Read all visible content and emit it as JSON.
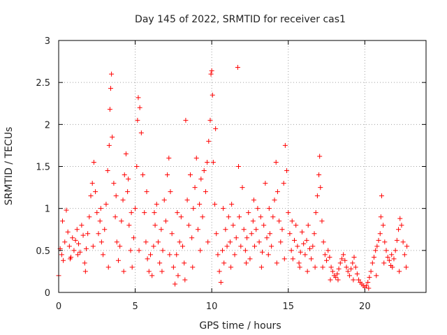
{
  "chart_data": {
    "type": "scatter",
    "title": "Day 145 of 2022, SRMTID for receiver cas1",
    "xlabel": "GPS time / hours",
    "ylabel": "SRMTID / TECUs",
    "xlim": [
      0,
      24
    ],
    "ylim": [
      0,
      3
    ],
    "xticks": [
      "0",
      "5",
      "10",
      "15",
      "20"
    ],
    "yticks": [
      "0",
      "0.5",
      "1",
      "1.5",
      "2",
      "2.5",
      "3"
    ],
    "grid": true,
    "marker": "+",
    "color": "#ff0000",
    "series": [
      {
        "name": "cas1",
        "points": [
          [
            0.1,
            0.52
          ],
          [
            0.2,
            0.45
          ],
          [
            0.3,
            0.38
          ],
          [
            0.4,
            0.6
          ],
          [
            0.5,
            0.98
          ],
          [
            0.6,
            0.72
          ],
          [
            0.7,
            0.55
          ],
          [
            0.8,
            0.42
          ],
          [
            0.9,
            0.65
          ],
          [
            1.0,
            0.5
          ],
          [
            1.1,
            0.62
          ],
          [
            1.2,
            0.75
          ],
          [
            1.3,
            0.58
          ],
          [
            1.4,
            0.48
          ],
          [
            1.5,
            0.8
          ],
          [
            1.6,
            0.68
          ],
          [
            1.7,
            0.35
          ],
          [
            1.8,
            0.52
          ],
          [
            1.9,
            0.7
          ],
          [
            2.0,
            0.9
          ],
          [
            2.1,
            1.15
          ],
          [
            2.2,
            1.3
          ],
          [
            2.3,
            1.55
          ],
          [
            2.4,
            1.2
          ],
          [
            2.5,
            0.95
          ],
          [
            2.6,
            0.7
          ],
          [
            2.7,
            0.85
          ],
          [
            2.8,
            0.6
          ],
          [
            2.9,
            0.45
          ],
          [
            3.0,
            0.75
          ],
          [
            3.1,
            1.05
          ],
          [
            3.2,
            1.45
          ],
          [
            3.3,
            1.75
          ],
          [
            3.35,
            2.18
          ],
          [
            3.4,
            2.43
          ],
          [
            3.45,
            2.6
          ],
          [
            3.5,
            1.85
          ],
          [
            3.6,
            1.3
          ],
          [
            3.7,
            0.9
          ],
          [
            3.8,
            0.6
          ],
          [
            3.9,
            0.38
          ],
          [
            4.0,
            0.55
          ],
          [
            4.1,
            0.85
          ],
          [
            4.2,
            1.1
          ],
          [
            4.3,
            1.4
          ],
          [
            4.4,
            1.65
          ],
          [
            4.5,
            1.2
          ],
          [
            4.6,
            0.8
          ],
          [
            4.7,
            0.5
          ],
          [
            4.8,
            0.3
          ],
          [
            4.9,
            0.65
          ],
          [
            5.0,
            1.0
          ],
          [
            5.1,
            1.5
          ],
          [
            5.15,
            2.05
          ],
          [
            5.2,
            2.32
          ],
          [
            5.3,
            2.2
          ],
          [
            5.4,
            1.9
          ],
          [
            5.5,
            1.4
          ],
          [
            5.6,
            0.95
          ],
          [
            5.7,
            0.6
          ],
          [
            5.8,
            0.4
          ],
          [
            5.9,
            0.25
          ],
          [
            6.0,
            0.45
          ],
          [
            6.1,
            0.2
          ],
          [
            6.2,
            0.55
          ],
          [
            6.3,
            0.8
          ],
          [
            6.4,
            1.05
          ],
          [
            6.5,
            0.6
          ],
          [
            6.6,
            0.35
          ],
          [
            6.7,
            0.75
          ],
          [
            6.8,
            0.5
          ],
          [
            6.9,
            1.1
          ],
          [
            7.0,
            0.85
          ],
          [
            7.1,
            1.4
          ],
          [
            7.2,
            1.6
          ],
          [
            7.3,
            1.2
          ],
          [
            7.4,
            0.7
          ],
          [
            7.5,
            0.3
          ],
          [
            7.6,
            0.1
          ],
          [
            7.7,
            0.45
          ],
          [
            7.8,
            0.2
          ],
          [
            7.9,
            0.6
          ],
          [
            8.0,
            0.9
          ],
          [
            8.1,
            0.55
          ],
          [
            8.2,
            0.35
          ],
          [
            8.3,
            2.05
          ],
          [
            8.4,
            1.1
          ],
          [
            8.5,
            0.8
          ],
          [
            8.6,
            1.4
          ],
          [
            8.7,
            0.65
          ],
          [
            8.8,
            1.0
          ],
          [
            8.9,
            1.25
          ],
          [
            9.0,
            1.6
          ],
          [
            9.1,
            0.75
          ],
          [
            9.2,
            1.05
          ],
          [
            9.3,
            1.35
          ],
          [
            9.4,
            0.9
          ],
          [
            9.5,
            1.45
          ],
          [
            9.6,
            1.2
          ],
          [
            9.7,
            1.55
          ],
          [
            9.8,
            1.8
          ],
          [
            9.9,
            2.05
          ],
          [
            9.95,
            2.6
          ],
          [
            10.0,
            2.64
          ],
          [
            10.05,
            2.35
          ],
          [
            10.1,
            1.55
          ],
          [
            10.2,
            1.05
          ],
          [
            10.3,
            0.7
          ],
          [
            10.4,
            0.45
          ],
          [
            10.5,
            0.25
          ],
          [
            10.6,
            0.12
          ],
          [
            10.7,
            0.5
          ],
          [
            10.8,
            0.35
          ],
          [
            10.9,
            0.75
          ],
          [
            11.0,
            0.55
          ],
          [
            11.1,
            0.9
          ],
          [
            11.2,
            0.6
          ],
          [
            11.3,
            1.05
          ],
          [
            11.4,
            0.8
          ],
          [
            11.5,
            0.45
          ],
          [
            11.6,
            0.65
          ],
          [
            11.7,
            2.68
          ],
          [
            11.8,
            0.9
          ],
          [
            11.9,
            0.55
          ],
          [
            12.0,
            1.25
          ],
          [
            12.1,
            0.75
          ],
          [
            12.2,
            0.5
          ],
          [
            12.3,
            0.65
          ],
          [
            12.4,
            0.95
          ],
          [
            12.5,
            0.4
          ],
          [
            12.6,
            0.7
          ],
          [
            12.7,
            0.85
          ],
          [
            12.8,
            0.55
          ],
          [
            12.9,
            0.75
          ],
          [
            13.0,
            1.0
          ],
          [
            13.1,
            0.6
          ],
          [
            13.2,
            0.9
          ],
          [
            13.3,
            0.48
          ],
          [
            13.4,
            0.8
          ],
          [
            13.5,
            1.3
          ],
          [
            13.6,
            0.65
          ],
          [
            13.7,
            0.45
          ],
          [
            13.8,
            0.7
          ],
          [
            13.9,
            0.55
          ],
          [
            14.0,
            0.9
          ],
          [
            14.1,
            1.1
          ],
          [
            14.2,
            1.55
          ],
          [
            14.3,
            1.2
          ],
          [
            14.4,
            0.85
          ],
          [
            14.5,
            0.6
          ],
          [
            14.6,
            0.75
          ],
          [
            14.7,
            1.3
          ],
          [
            14.8,
            1.75
          ],
          [
            14.9,
            1.45
          ],
          [
            15.0,
            0.95
          ],
          [
            15.1,
            0.7
          ],
          [
            15.2,
            0.5
          ],
          [
            15.3,
            0.4
          ],
          [
            15.4,
            0.62
          ],
          [
            15.5,
            0.8
          ],
          [
            15.6,
            0.55
          ],
          [
            15.7,
            0.35
          ],
          [
            15.8,
            0.48
          ],
          [
            15.9,
            0.72
          ],
          [
            16.0,
            0.58
          ],
          [
            16.1,
            0.45
          ],
          [
            16.2,
            0.62
          ],
          [
            16.3,
            0.8
          ],
          [
            16.4,
            0.52
          ],
          [
            16.5,
            0.4
          ],
          [
            16.6,
            0.55
          ],
          [
            16.7,
            0.7
          ],
          [
            16.8,
            0.95
          ],
          [
            16.9,
            1.15
          ],
          [
            17.0,
            1.4
          ],
          [
            17.05,
            1.62
          ],
          [
            17.1,
            1.25
          ],
          [
            17.2,
            0.85
          ],
          [
            17.3,
            0.6
          ],
          [
            17.4,
            0.45
          ],
          [
            17.5,
            0.38
          ],
          [
            17.6,
            0.5
          ],
          [
            17.7,
            0.42
          ],
          [
            17.8,
            0.3
          ],
          [
            17.9,
            0.25
          ],
          [
            18.0,
            0.2
          ],
          [
            18.1,
            0.18
          ],
          [
            18.2,
            0.22
          ],
          [
            18.3,
            0.28
          ],
          [
            18.4,
            0.35
          ],
          [
            18.5,
            0.4
          ],
          [
            18.6,
            0.45
          ],
          [
            18.7,
            0.38
          ],
          [
            18.8,
            0.3
          ],
          [
            18.9,
            0.25
          ],
          [
            19.0,
            0.2
          ],
          [
            19.1,
            0.28
          ],
          [
            19.2,
            0.35
          ],
          [
            19.3,
            0.42
          ],
          [
            19.4,
            0.3
          ],
          [
            19.5,
            0.22
          ],
          [
            19.6,
            0.15
          ],
          [
            19.7,
            0.12
          ],
          [
            19.8,
            0.1
          ],
          [
            19.9,
            0.08
          ],
          [
            20.0,
            0.06
          ],
          [
            20.1,
            0.08
          ],
          [
            20.2,
            0.12
          ],
          [
            20.3,
            0.18
          ],
          [
            20.4,
            0.25
          ],
          [
            20.5,
            0.35
          ],
          [
            20.6,
            0.42
          ],
          [
            20.7,
            0.5
          ],
          [
            20.8,
            0.55
          ],
          [
            20.9,
            0.62
          ],
          [
            21.0,
            0.7
          ],
          [
            21.05,
            0.9
          ],
          [
            21.1,
            1.15
          ],
          [
            21.2,
            0.8
          ],
          [
            21.3,
            0.6
          ],
          [
            21.4,
            0.5
          ],
          [
            21.5,
            0.42
          ],
          [
            21.6,
            0.38
          ],
          [
            21.7,
            0.32
          ],
          [
            21.8,
            0.3
          ],
          [
            21.9,
            0.4
          ],
          [
            22.0,
            0.5
          ],
          [
            22.1,
            0.62
          ],
          [
            22.2,
            0.75
          ],
          [
            22.3,
            0.88
          ],
          [
            22.4,
            0.8
          ],
          [
            22.5,
            0.6
          ],
          [
            22.6,
            0.45
          ],
          [
            22.7,
            0.3
          ],
          [
            0.0,
            0.2
          ],
          [
            0.25,
            0.85
          ],
          [
            0.75,
            0.4
          ],
          [
            1.25,
            0.45
          ],
          [
            2.25,
            0.55
          ],
          [
            2.75,
            1.0
          ],
          [
            3.25,
            0.3
          ],
          [
            3.75,
            1.15
          ],
          [
            4.25,
            0.25
          ],
          [
            4.75,
            0.95
          ],
          [
            5.25,
            0.5
          ],
          [
            5.75,
            1.2
          ],
          [
            6.25,
            0.95
          ],
          [
            6.75,
            0.25
          ],
          [
            7.25,
            0.45
          ],
          [
            7.75,
            0.95
          ],
          [
            8.25,
            0.15
          ],
          [
            8.75,
            0.3
          ],
          [
            9.25,
            0.5
          ],
          [
            9.75,
            0.6
          ],
          [
            10.25,
            1.95
          ],
          [
            10.75,
            1.0
          ],
          [
            11.25,
            0.3
          ],
          [
            11.75,
            1.5
          ],
          [
            12.25,
            0.35
          ],
          [
            12.75,
            1.1
          ],
          [
            13.25,
            0.3
          ],
          [
            13.75,
            1.0
          ],
          [
            14.25,
            0.35
          ],
          [
            14.75,
            0.4
          ],
          [
            15.25,
            0.85
          ],
          [
            15.75,
            0.3
          ],
          [
            16.25,
            0.25
          ],
          [
            16.75,
            0.3
          ],
          [
            17.25,
            0.3
          ],
          [
            17.75,
            0.15
          ],
          [
            18.25,
            0.15
          ],
          [
            19.25,
            0.15
          ],
          [
            20.25,
            0.05
          ],
          [
            20.75,
            0.2
          ],
          [
            21.25,
            0.35
          ],
          [
            21.75,
            0.45
          ],
          [
            22.25,
            0.25
          ],
          [
            22.75,
            0.55
          ],
          [
            1.75,
            0.25
          ],
          [
            4.55,
            1.35
          ]
        ]
      }
    ]
  }
}
